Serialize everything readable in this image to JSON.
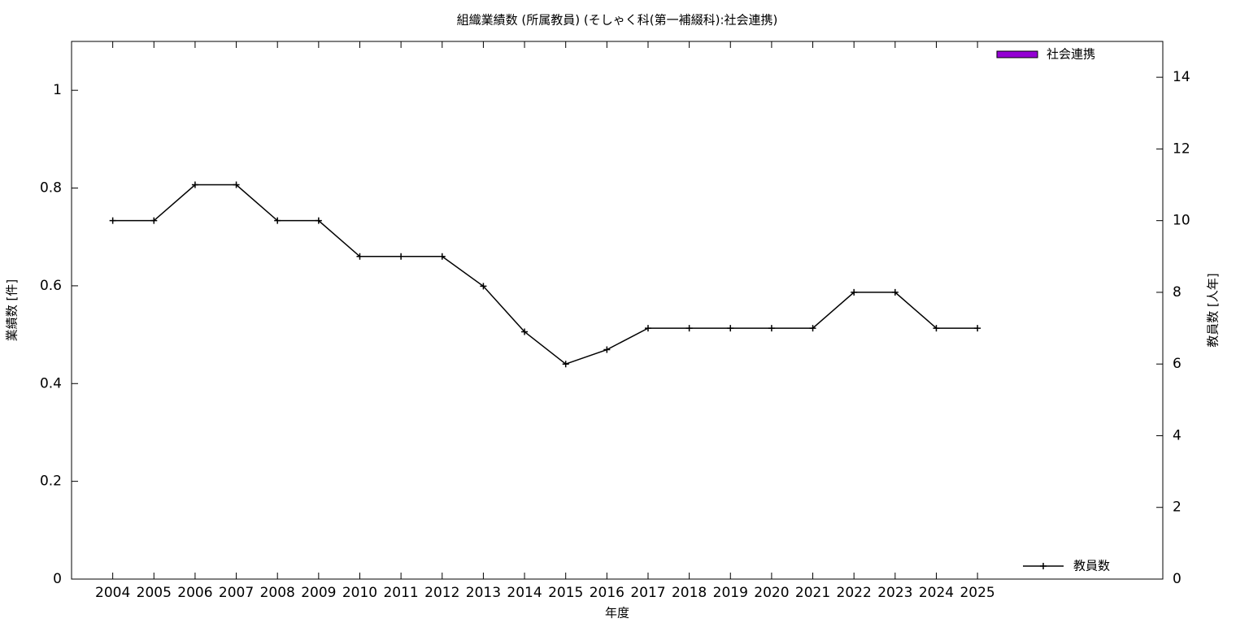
{
  "chart_data": {
    "type": "bar-line",
    "title": "組織業績数 (所属教員) (そしゃく科(第一補綴科):社会連携)",
    "xlabel": "年度",
    "ylabel": "業績数 [件]",
    "y2label": "教員数 [人年]",
    "categories": [
      "2004",
      "2005",
      "2006",
      "2007",
      "2008",
      "2009",
      "2010",
      "2011",
      "2012",
      "2013",
      "2014",
      "2015",
      "2016",
      "2017",
      "2018",
      "2019",
      "2020",
      "2021",
      "2022",
      "2023",
      "2024",
      "2025"
    ],
    "series": [
      {
        "name": "社会連携",
        "type": "bar",
        "color": "#9400d3",
        "legend": "top-right",
        "values": [
          0,
          0,
          0,
          0,
          0,
          0,
          0,
          0,
          0,
          0,
          0,
          0,
          0,
          0,
          0,
          0,
          0,
          0,
          0,
          0,
          0,
          0
        ]
      },
      {
        "name": "教員数",
        "type": "line",
        "axis": "y2",
        "color": "#000000",
        "legend": "bottom-right",
        "values": [
          10,
          10,
          11,
          11,
          10,
          10,
          9,
          9,
          9,
          8.17,
          6.9,
          6,
          6.4,
          7,
          7,
          7,
          7,
          7,
          8,
          8,
          7,
          7
        ]
      }
    ],
    "ylim": [
      0,
      1.1
    ],
    "yticks": [
      0,
      0.2,
      0.4,
      0.6,
      0.8,
      1
    ],
    "y2lim": [
      0,
      15
    ],
    "y2ticks": [
      0,
      2,
      4,
      6,
      8,
      10,
      12,
      14
    ]
  }
}
